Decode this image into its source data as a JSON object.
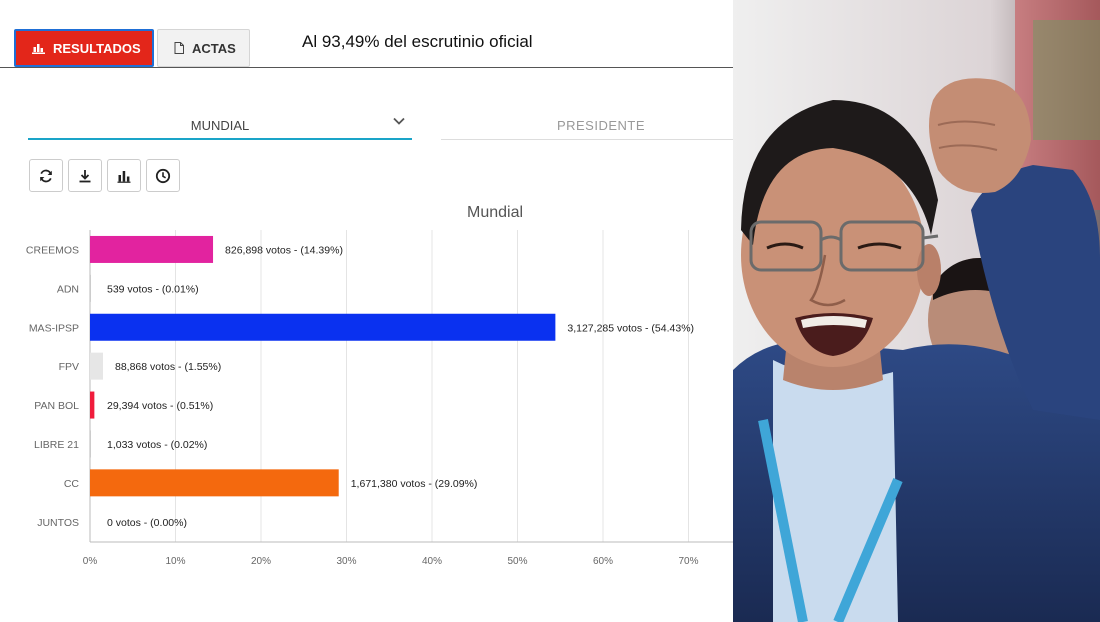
{
  "tabs": {
    "results_label": "RESULTADOS",
    "actas_label": "ACTAS"
  },
  "header": {
    "scrutiny_text": "Al 93,49% del escrutinio oficial"
  },
  "filters": {
    "region_value": "MUNDIAL",
    "office_value": "PRESIDENTE"
  },
  "toolbar": {
    "icons": [
      "refresh-icon",
      "download-icon",
      "bar-chart-icon",
      "clock-icon"
    ]
  },
  "chart_data": {
    "type": "bar",
    "orientation": "horizontal",
    "title": "Mundial",
    "categories": [
      "CREEMOS",
      "ADN",
      "MAS-IPSP",
      "FPV",
      "PAN BOL",
      "LIBRE 21",
      "CC",
      "JUNTOS"
    ],
    "values": [
      14.39,
      0.01,
      54.43,
      1.55,
      0.51,
      0.02,
      29.09,
      0.0
    ],
    "labels": [
      "826,898 votos - (14.39%)",
      "539 votos - (0.01%)",
      "3,127,285 votos - (54.43%)",
      "88,868 votos - (1.55%)",
      "29,394 votos - (0.51%)",
      "1,033 votos - (0.02%)",
      "1,671,380 votos - (29.09%)",
      "0 votos - (0.00%)"
    ],
    "colors": [
      "#e2239f",
      "#cccccc",
      "#0a31f0",
      "#e6e6e6",
      "#f01c3c",
      "#cccccc",
      "#f4690e",
      "#cccccc"
    ],
    "xticks": [
      "0%",
      "10%",
      "20%",
      "30%",
      "40%",
      "50%",
      "60%",
      "70%"
    ],
    "xlim": [
      0,
      80
    ],
    "grid": true
  },
  "photo": {
    "subject": "smiling man with raised fist, glasses, blue jacket and lanyard"
  }
}
